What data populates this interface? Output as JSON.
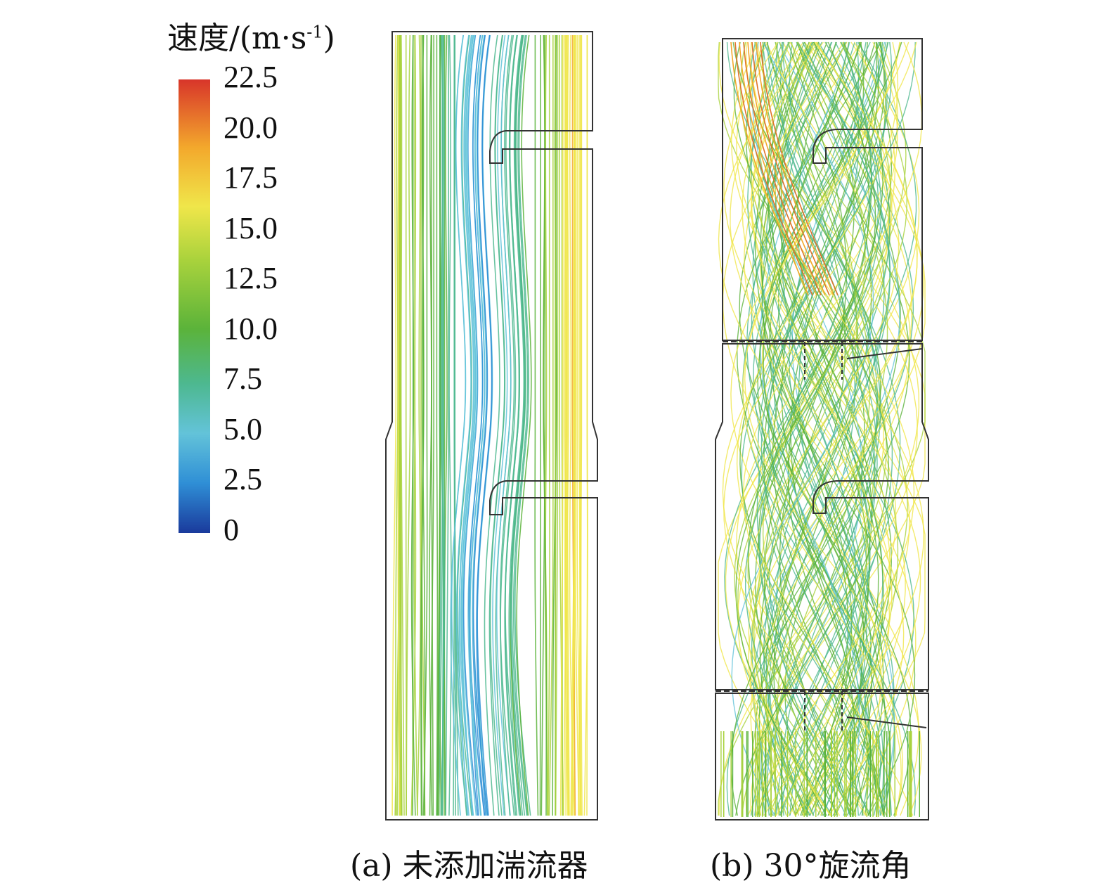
{
  "legend": {
    "title_main": "速度/(m·s",
    "title_sup": "-1",
    "title_end": ")",
    "ticks": [
      "22.5",
      "20.0",
      "17.5",
      "15.0",
      "12.5",
      "10.0",
      "7.5",
      "5.0",
      "2.5",
      "0"
    ],
    "min": 0,
    "max": 22.5,
    "colormap": [
      "#1a3a9c",
      "#2f8fd6",
      "#63c3d9",
      "#4db88f",
      "#5bb33a",
      "#a8d23c",
      "#f0e64a",
      "#f3a82c",
      "#d8352a"
    ]
  },
  "panels": [
    {
      "id": "a",
      "caption": "(a) 未添加湍流器"
    },
    {
      "id": "b",
      "caption": "(b) 30°旋流角"
    }
  ]
}
